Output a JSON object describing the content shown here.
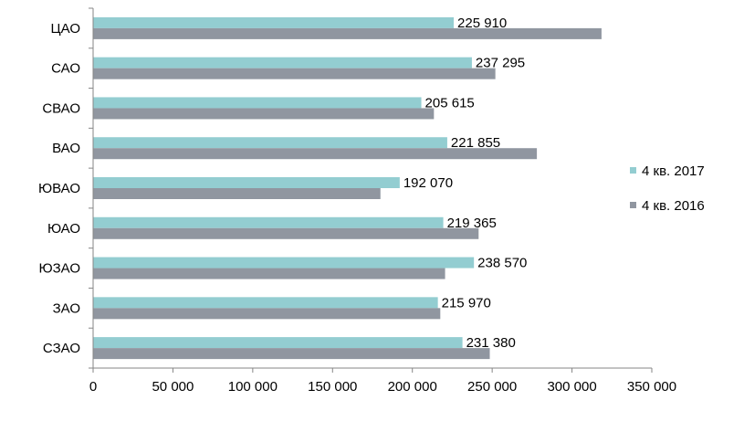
{
  "chart_data": {
    "type": "bar",
    "orientation": "horizontal",
    "categories": [
      "ЦАО",
      "САО",
      "СВАО",
      "ВАО",
      "ЮВАО",
      "ЮАО",
      "ЮЗАО",
      "ЗАО",
      "СЗАО"
    ],
    "series": [
      {
        "name": "4 кв. 2017",
        "color": "#93CDD1",
        "values": [
          225910,
          237295,
          205615,
          221855,
          192070,
          219365,
          238570,
          215970,
          231380
        ],
        "labels": [
          "225 910",
          "237 295",
          "205 615",
          "221 855",
          "192 070",
          "219 365",
          "238 570",
          "215 970",
          "231 380"
        ]
      },
      {
        "name": "4 кв. 2016",
        "color": "#9096A0",
        "values": [
          318500,
          252000,
          213500,
          278000,
          180000,
          241500,
          220500,
          217500,
          248500
        ]
      }
    ],
    "xlim": [
      0,
      350000
    ],
    "ticks": [
      0,
      50000,
      100000,
      150000,
      200000,
      250000,
      300000,
      350000
    ],
    "tick_labels": [
      "0",
      "50 000",
      "100 000",
      "150 000",
      "200 000",
      "250 000",
      "300 000",
      "350 000"
    ],
    "grid": false,
    "legend": "right",
    "title": "",
    "xlabel": "",
    "ylabel": ""
  }
}
